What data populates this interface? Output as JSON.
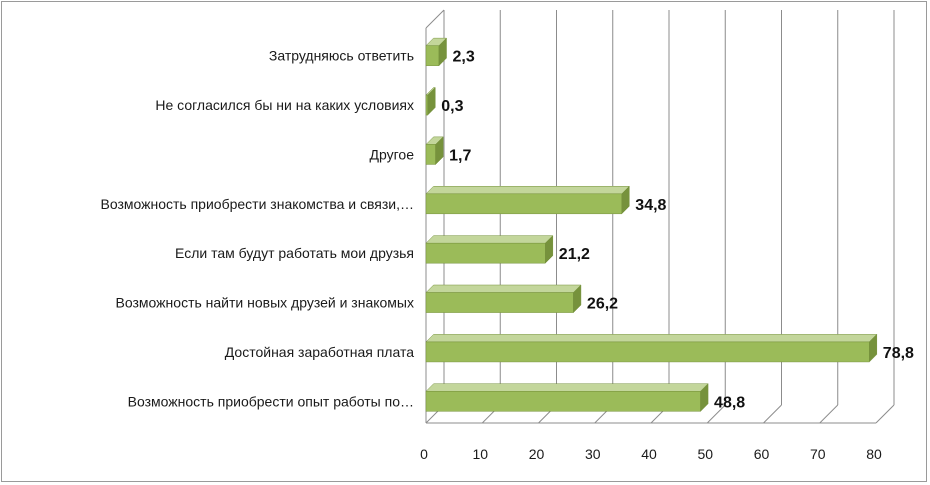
{
  "chart_data": {
    "type": "bar",
    "orientation": "horizontal",
    "style": "3d",
    "categories": [
      "Возможность приобрести опыт работы по…",
      "Достойная заработная плата",
      "Возможность найти новых друзей и знакомых",
      "Если там будут работать мои друзья",
      "Возможность приобрести знакомства и связи,…",
      "Другое",
      "Не согласился бы ни на каких условиях",
      "Затрудняюсь ответить"
    ],
    "values": [
      48.8,
      78.8,
      26.2,
      21.2,
      34.8,
      1.7,
      0.3,
      2.3
    ],
    "value_labels": [
      "48,8",
      "78,8",
      "26,2",
      "21,2",
      "34,8",
      "1,7",
      "0,3",
      "2,3"
    ],
    "xlim": [
      0,
      80
    ],
    "xticks": [
      "0",
      "10",
      "20",
      "30",
      "40",
      "50",
      "60",
      "70",
      "80"
    ],
    "grid": true,
    "legend": "none",
    "colors": {
      "bar_front": "#9bbb59",
      "bar_top": "#c3d69b",
      "bar_side": "#76923c",
      "grid": "#8c8c8c"
    }
  }
}
